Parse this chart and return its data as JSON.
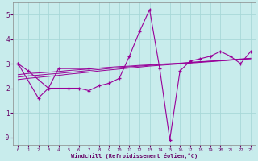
{
  "xlabel": "Windchill (Refroidissement éolien,°C)",
  "background_color": "#c8ecec",
  "grid_color": "#a8d8d8",
  "line_color": "#990099",
  "x_hours": [
    0,
    1,
    2,
    3,
    4,
    5,
    6,
    7,
    8,
    9,
    10,
    11,
    12,
    13,
    14,
    15,
    16,
    17,
    18,
    19,
    20,
    21,
    22,
    23
  ],
  "curve_spiky": [
    3.0,
    null,
    1.6,
    2.0,
    null,
    2.0,
    2.0,
    1.9,
    2.1,
    2.2,
    2.4,
    3.3,
    4.3,
    5.2,
    2.8,
    -0.1,
    2.7,
    3.1,
    3.2,
    3.3,
    3.5,
    3.3,
    3.0,
    3.5
  ],
  "curve_top": [
    3.0,
    2.7,
    null,
    2.0,
    2.8,
    null,
    null,
    2.8,
    null,
    null,
    null,
    null,
    null,
    null,
    null,
    null,
    null,
    null,
    null,
    null,
    null,
    null,
    null,
    null
  ],
  "lines_data": {
    "line_a": [
      2.55,
      2.6,
      2.62,
      2.65,
      2.68,
      2.72,
      2.75,
      2.78,
      2.82,
      2.85,
      2.88,
      2.9,
      2.93,
      2.95,
      2.98,
      3.0,
      3.02,
      3.05,
      3.08,
      3.1,
      3.12,
      3.15,
      3.18,
      3.2
    ],
    "line_b": [
      2.45,
      2.5,
      2.53,
      2.57,
      2.6,
      2.64,
      2.68,
      2.72,
      2.76,
      2.8,
      2.84,
      2.87,
      2.9,
      2.93,
      2.96,
      2.98,
      3.01,
      3.04,
      3.07,
      3.1,
      3.13,
      3.16,
      3.19,
      3.22
    ],
    "line_c": [
      2.35,
      2.4,
      2.44,
      2.48,
      2.52,
      2.57,
      2.61,
      2.65,
      2.7,
      2.74,
      2.78,
      2.82,
      2.86,
      2.9,
      2.93,
      2.96,
      2.99,
      3.02,
      3.05,
      3.08,
      3.11,
      3.14,
      3.17,
      3.2
    ]
  },
  "ylim": [
    -0.3,
    5.5
  ],
  "xlim": [
    -0.5,
    23.5
  ],
  "yticks": [
    0,
    1,
    2,
    3,
    4,
    5
  ],
  "ytick_labels": [
    "-0",
    "1",
    "2",
    "3",
    "4",
    "5"
  ],
  "xticks": [
    0,
    1,
    2,
    3,
    4,
    5,
    6,
    7,
    8,
    9,
    10,
    11,
    12,
    13,
    14,
    15,
    16,
    17,
    18,
    19,
    20,
    21,
    22,
    23
  ]
}
